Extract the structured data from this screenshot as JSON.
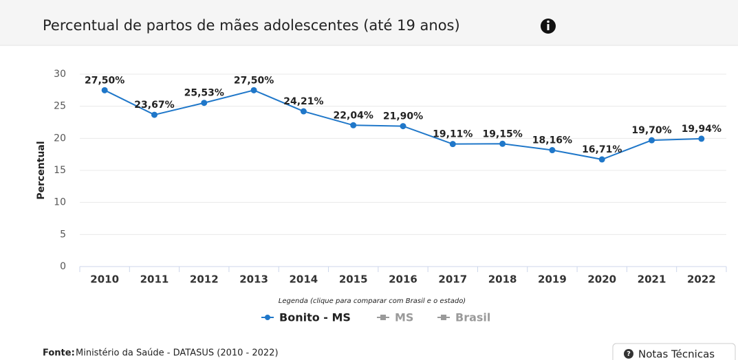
{
  "chart_data": {
    "type": "line",
    "title": "Percentual de partos de mães adolescentes (até 19 anos)",
    "y_label": "Percentual",
    "categories": [
      "2010",
      "2011",
      "2012",
      "2013",
      "2014",
      "2015",
      "2016",
      "2017",
      "2018",
      "2019",
      "2020",
      "2021",
      "2022"
    ],
    "series": [
      {
        "name": "Bonito - MS",
        "color": "#1f77c9",
        "values": [
          27.5,
          23.67,
          25.53,
          27.5,
          24.21,
          22.04,
          21.9,
          19.11,
          19.15,
          18.16,
          16.71,
          19.7,
          19.94
        ],
        "value_labels": [
          "27,50%",
          "23,67%",
          "25,53%",
          "27,50%",
          "24,21%",
          "22,04%",
          "21,90%",
          "19,11%",
          "19,15%",
          "18,16%",
          "16,71%",
          "19,70%",
          "19,94%"
        ]
      }
    ],
    "inactive_legend": [
      {
        "name": "MS",
        "color": "#9a9a9a"
      },
      {
        "name": "Brasil",
        "color": "#9a9a9a"
      }
    ],
    "legend_caption": "Legenda (clique para comparar com Brasil e o estado)",
    "ylim": [
      0,
      30
    ],
    "yticks": [
      0,
      5,
      10,
      15,
      20,
      25,
      30
    ],
    "grid": true
  },
  "footer": {
    "source_label": "Fonte:",
    "source": "Ministério da Saúde - DATASUS (2010 - 2022)",
    "button": "Notas Técnicas"
  }
}
